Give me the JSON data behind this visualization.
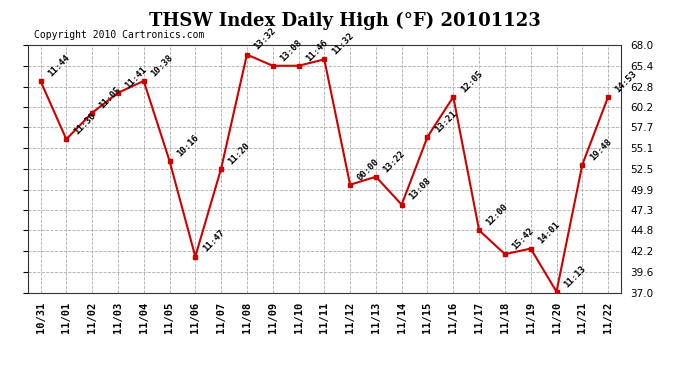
{
  "title": "THSW Index Daily High (°F) 20101123",
  "copyright": "Copyright 2010 Cartronics.com",
  "x_labels": [
    "10/31",
    "11/01",
    "11/02",
    "11/03",
    "11/04",
    "11/05",
    "11/06",
    "11/07",
    "11/08",
    "11/09",
    "11/10",
    "11/11",
    "11/12",
    "11/13",
    "11/14",
    "11/15",
    "11/16",
    "11/17",
    "11/18",
    "11/19",
    "11/20",
    "11/21",
    "11/22"
  ],
  "y_values": [
    63.5,
    56.2,
    59.5,
    62.0,
    63.5,
    53.5,
    41.5,
    52.5,
    66.8,
    65.4,
    65.4,
    66.2,
    50.5,
    51.5,
    48.0,
    56.5,
    61.5,
    44.8,
    41.8,
    42.5,
    37.1,
    53.0,
    61.5
  ],
  "time_labels": [
    "11:44",
    "11:30",
    "11:05",
    "11:41",
    "10:38",
    "10:16",
    "11:47",
    "11:20",
    "13:32",
    "13:08",
    "11:46",
    "11:32",
    "00:00",
    "13:22",
    "13:08",
    "13:21",
    "12:05",
    "12:00",
    "15:42",
    "14:01",
    "11:13",
    "19:48",
    "14:53"
  ],
  "line_color": "#cc0000",
  "marker_color": "#cc0000",
  "bg_color": "#ffffff",
  "grid_color": "#aaaaaa",
  "ylim": [
    37.0,
    68.0
  ],
  "yticks": [
    37.0,
    39.6,
    42.2,
    44.8,
    47.3,
    49.9,
    52.5,
    55.1,
    57.7,
    60.2,
    62.8,
    65.4,
    68.0
  ],
  "title_fontsize": 13,
  "label_fontsize": 7.5,
  "copyright_fontsize": 7,
  "annotation_fontsize": 6.5,
  "annotation_rotation": 45
}
